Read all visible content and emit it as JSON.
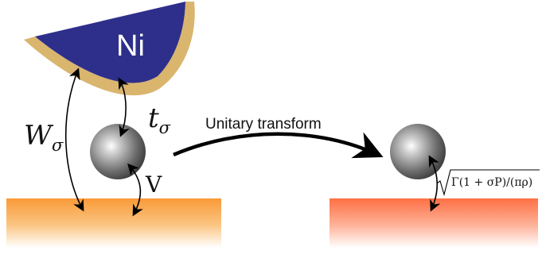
{
  "tip": {
    "label": "Ni"
  },
  "labels": {
    "w_sigma_main": "W",
    "w_sigma_sub": "σ",
    "t_sigma_main": "t",
    "t_sigma_sub": "σ",
    "v": "V",
    "transform": "Unitary transform",
    "coupling": "Γ(1 + σP)/(πρ)"
  },
  "colors": {
    "tip_core": "#2e2f8a",
    "tip_shell": "#d9b56e",
    "left_substrate": "#f7a040",
    "right_substrate": "#ff7a4a",
    "ball": "#8a8a8a",
    "arrow": "#000000"
  }
}
